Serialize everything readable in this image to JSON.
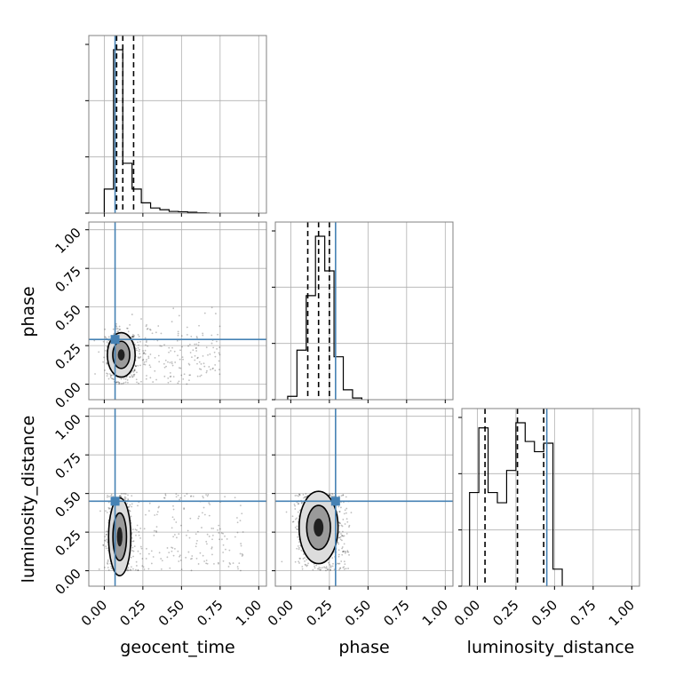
{
  "chart_data": {
    "type": "corner",
    "parameters": [
      "geocent_time",
      "phase",
      "luminosity_distance"
    ],
    "tick_labels": [
      "0.00",
      "0.25",
      "0.50",
      "0.75",
      "1.00"
    ],
    "axis_range": [
      -0.1,
      1.05
    ],
    "truths": {
      "geocent_time": 0.07,
      "phase": 0.29,
      "luminosity_distance": 0.45
    },
    "grid": true,
    "histograms": [
      {
        "parameter": "geocent_time",
        "bin_edges": [
          0.0,
          0.06,
          0.12,
          0.18,
          0.24,
          0.3,
          0.36,
          0.42,
          0.48,
          0.54,
          0.6,
          0.66,
          0.68
        ],
        "counts": [
          0.14,
          0.95,
          0.29,
          0.14,
          0.06,
          0.03,
          0.02,
          0.01,
          0.008,
          0.005,
          0.002,
          0.001
        ],
        "quantiles": [
          0.08,
          0.12,
          0.19
        ]
      },
      {
        "parameter": "phase",
        "bin_edges": [
          -0.02,
          0.04,
          0.1,
          0.16,
          0.22,
          0.28,
          0.34,
          0.4,
          0.46
        ],
        "counts": [
          0.02,
          0.3,
          0.63,
          0.99,
          0.78,
          0.26,
          0.06,
          0.01
        ],
        "quantiles": [
          0.11,
          0.18,
          0.25
        ]
      },
      {
        "parameter": "luminosity_distance",
        "bin_edges": [
          -0.05,
          0.01,
          0.07,
          0.13,
          0.19,
          0.25,
          0.31,
          0.37,
          0.43,
          0.49,
          0.55
        ],
        "counts": [
          0.55,
          0.93,
          0.55,
          0.49,
          0.68,
          0.96,
          0.85,
          0.79,
          0.84,
          0.1
        ],
        "quantiles": [
          0.05,
          0.26,
          0.43
        ]
      }
    ],
    "scatter_2d": [
      {
        "x": "geocent_time",
        "y": "phase",
        "density_center": [
          0.11,
          0.19
        ],
        "spread": [
          0.05,
          0.08
        ],
        "tail_to_x": 0.75
      },
      {
        "x": "geocent_time",
        "y": "luminosity_distance",
        "density_center": [
          0.1,
          0.22
        ],
        "spread": [
          0.04,
          0.14
        ],
        "tail_to_x": 0.9
      },
      {
        "x": "phase",
        "y": "luminosity_distance",
        "density_center": [
          0.18,
          0.28
        ],
        "spread": [
          0.07,
          0.13
        ],
        "tail_to_x": 0.38
      }
    ],
    "truth_color": "#4682b4"
  }
}
